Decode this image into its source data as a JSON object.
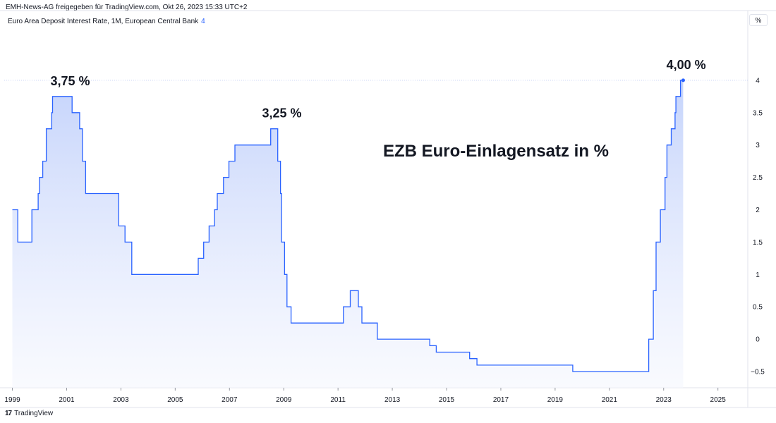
{
  "header": {
    "published": "EMH-News-AG freigegeben für TradingView.com, Okt 26, 2023 15:33 UTC+2",
    "series": "Euro Area Deposit Interest Rate, 1M, European Central Bank",
    "series_count": "4",
    "unit_button": "%"
  },
  "footer": {
    "brand": "TradingView",
    "logo_glyph": "17"
  },
  "chart_data": {
    "type": "area",
    "title": "EZB Euro-Einlagensatz in %",
    "xlabel": "",
    "ylabel": "",
    "xlim": [
      1998.7,
      2026.1
    ],
    "ylim": [
      -0.75,
      4.75
    ],
    "y_ticks": [
      -0.5,
      0,
      0.5,
      1,
      1.5,
      2,
      2.5,
      3,
      3.5,
      4
    ],
    "y_tick_labels": [
      "−0.5",
      "0",
      "0.5",
      "1",
      "1.5",
      "2",
      "2.5",
      "3",
      "3.5",
      "4"
    ],
    "x_ticks": [
      1999,
      2001,
      2003,
      2005,
      2007,
      2009,
      2011,
      2013,
      2015,
      2017,
      2019,
      2021,
      2023,
      2025
    ],
    "x_tick_labels": [
      "1999",
      "2001",
      "2003",
      "2005",
      "2007",
      "2009",
      "2011",
      "2013",
      "2015",
      "2017",
      "2019",
      "2021",
      "2023",
      "2025"
    ],
    "grid": false,
    "line_color": "#2962ff",
    "fill_color_top": "#bfcffb",
    "fill_color_bottom": "#f5f7fe",
    "series": [
      {
        "points": [
          [
            1999.0,
            2.0
          ],
          [
            1999.2,
            2.0
          ],
          [
            1999.2,
            1.5
          ],
          [
            1999.72,
            1.5
          ],
          [
            1999.72,
            2.0
          ],
          [
            1999.95,
            2.0
          ],
          [
            1999.95,
            2.25
          ],
          [
            2000.0,
            2.25
          ],
          [
            2000.0,
            2.5
          ],
          [
            2000.12,
            2.5
          ],
          [
            2000.12,
            2.75
          ],
          [
            2000.25,
            2.75
          ],
          [
            2000.25,
            3.25
          ],
          [
            2000.45,
            3.25
          ],
          [
            2000.45,
            3.5
          ],
          [
            2000.48,
            3.5
          ],
          [
            2000.48,
            3.75
          ],
          [
            2001.2,
            3.75
          ],
          [
            2001.2,
            3.5
          ],
          [
            2001.48,
            3.5
          ],
          [
            2001.48,
            3.25
          ],
          [
            2001.58,
            3.25
          ],
          [
            2001.58,
            2.75
          ],
          [
            2001.7,
            2.75
          ],
          [
            2001.7,
            2.25
          ],
          [
            2002.92,
            2.25
          ],
          [
            2002.92,
            1.75
          ],
          [
            2003.15,
            1.75
          ],
          [
            2003.15,
            1.5
          ],
          [
            2003.4,
            1.5
          ],
          [
            2003.4,
            1.0
          ],
          [
            2005.85,
            1.0
          ],
          [
            2005.85,
            1.25
          ],
          [
            2006.05,
            1.25
          ],
          [
            2006.05,
            1.5
          ],
          [
            2006.25,
            1.5
          ],
          [
            2006.25,
            1.75
          ],
          [
            2006.45,
            1.75
          ],
          [
            2006.45,
            2.0
          ],
          [
            2006.55,
            2.0
          ],
          [
            2006.55,
            2.25
          ],
          [
            2006.78,
            2.25
          ],
          [
            2006.78,
            2.5
          ],
          [
            2006.98,
            2.5
          ],
          [
            2006.98,
            2.75
          ],
          [
            2007.2,
            2.75
          ],
          [
            2007.2,
            3.0
          ],
          [
            2008.52,
            3.0
          ],
          [
            2008.52,
            3.25
          ],
          [
            2008.78,
            3.25
          ],
          [
            2008.78,
            2.75
          ],
          [
            2008.88,
            2.75
          ],
          [
            2008.88,
            2.25
          ],
          [
            2008.92,
            2.25
          ],
          [
            2008.92,
            1.5
          ],
          [
            2009.03,
            1.5
          ],
          [
            2009.03,
            1.0
          ],
          [
            2009.12,
            1.0
          ],
          [
            2009.12,
            0.5
          ],
          [
            2009.27,
            0.5
          ],
          [
            2009.27,
            0.25
          ],
          [
            2011.2,
            0.25
          ],
          [
            2011.2,
            0.5
          ],
          [
            2011.45,
            0.5
          ],
          [
            2011.45,
            0.75
          ],
          [
            2011.75,
            0.75
          ],
          [
            2011.75,
            0.5
          ],
          [
            2011.88,
            0.5
          ],
          [
            2011.88,
            0.25
          ],
          [
            2012.45,
            0.25
          ],
          [
            2012.45,
            0.0
          ],
          [
            2014.38,
            0.0
          ],
          [
            2014.38,
            -0.1
          ],
          [
            2014.62,
            -0.1
          ],
          [
            2014.62,
            -0.2
          ],
          [
            2015.85,
            -0.2
          ],
          [
            2015.85,
            -0.3
          ],
          [
            2016.12,
            -0.3
          ],
          [
            2016.12,
            -0.4
          ],
          [
            2019.65,
            -0.4
          ],
          [
            2019.65,
            -0.5
          ],
          [
            2022.45,
            -0.5
          ],
          [
            2022.45,
            0.0
          ],
          [
            2022.62,
            0.0
          ],
          [
            2022.62,
            0.75
          ],
          [
            2022.72,
            0.75
          ],
          [
            2022.72,
            1.5
          ],
          [
            2022.88,
            1.5
          ],
          [
            2022.88,
            2.0
          ],
          [
            2023.05,
            2.0
          ],
          [
            2023.05,
            2.5
          ],
          [
            2023.12,
            2.5
          ],
          [
            2023.12,
            3.0
          ],
          [
            2023.28,
            3.0
          ],
          [
            2023.28,
            3.25
          ],
          [
            2023.42,
            3.25
          ],
          [
            2023.42,
            3.5
          ],
          [
            2023.45,
            3.5
          ],
          [
            2023.45,
            3.75
          ],
          [
            2023.62,
            3.75
          ],
          [
            2023.62,
            4.0
          ],
          [
            2023.72,
            4.0
          ]
        ]
      }
    ],
    "annotations": [
      {
        "text": "3,75 %",
        "x": 2001.0,
        "y": 3.75
      },
      {
        "text": "3,25 %",
        "x": 2008.8,
        "y": 3.25
      },
      {
        "text": "4,00 %",
        "x": 2023.7,
        "y": 4.0
      }
    ],
    "current_value": 4.0,
    "current_x": 2023.72
  }
}
